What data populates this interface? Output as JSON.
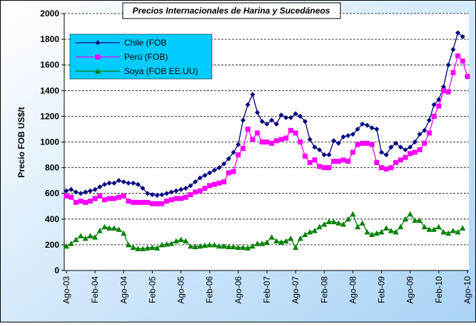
{
  "chart_data": {
    "type": "line",
    "title": "Precios Internacionales de Harina y Sucedáneos",
    "y_label": "Precio FOB US$/t",
    "categories": [
      "Ago-03",
      null,
      null,
      null,
      null,
      null,
      "Feb-04",
      null,
      null,
      null,
      null,
      null,
      "Ago-04",
      null,
      null,
      null,
      null,
      null,
      "Feb-05",
      null,
      null,
      null,
      null,
      null,
      "Ago-05",
      null,
      null,
      null,
      null,
      null,
      "Feb-06",
      null,
      null,
      null,
      null,
      null,
      "Ago-06",
      null,
      null,
      null,
      null,
      null,
      "Feb-07",
      null,
      null,
      null,
      null,
      null,
      "Ago-07",
      null,
      null,
      null,
      null,
      null,
      "Feb-08",
      null,
      null,
      null,
      null,
      null,
      "Ago-08",
      null,
      null,
      null,
      null,
      null,
      "Feb-09",
      null,
      null,
      null,
      null,
      null,
      "Ago-09",
      null,
      null,
      null,
      null,
      null,
      "Feb-10",
      null,
      null,
      null,
      null,
      null,
      "Ago-10"
    ],
    "series": [
      {
        "name": "Chile (FOB",
        "color": "#000080",
        "marker": "diamond",
        "values": [
          620,
          630,
          610,
          600,
          610,
          620,
          630,
          650,
          670,
          680,
          680,
          700,
          690,
          680,
          680,
          670,
          640,
          600,
          590,
          585,
          590,
          600,
          610,
          620,
          630,
          640,
          660,
          690,
          720,
          740,
          760,
          780,
          800,
          830,
          870,
          920,
          980,
          1170,
          1290,
          1370,
          1230,
          1160,
          1140,
          1170,
          1140,
          1210,
          1190,
          1190,
          1220,
          1200,
          1160,
          1020,
          960,
          940,
          900,
          900,
          1010,
          990,
          1040,
          1050,
          1060,
          1100,
          1140,
          1130,
          1110,
          1100,
          920,
          900,
          960,
          990,
          960,
          940,
          960,
          1000,
          1060,
          1090,
          1170,
          1290,
          1330,
          1430,
          1600,
          1720,
          1850,
          1820,
          null
        ]
      },
      {
        "name": "Perú (FOB)",
        "color": "#ff00ff",
        "marker": "square",
        "values": [
          580,
          570,
          530,
          540,
          530,
          540,
          560,
          580,
          550,
          560,
          560,
          570,
          580,
          540,
          530,
          530,
          530,
          530,
          520,
          520,
          520,
          540,
          550,
          560,
          560,
          570,
          590,
          610,
          620,
          640,
          660,
          670,
          680,
          690,
          760,
          770,
          900,
          950,
          1100,
          1020,
          1070,
          1000,
          1000,
          990,
          1010,
          1020,
          1030,
          1090,
          1070,
          1000,
          890,
          840,
          860,
          810,
          800,
          800,
          850,
          850,
          860,
          850,
          920,
          980,
          990,
          990,
          980,
          840,
          800,
          790,
          800,
          840,
          860,
          880,
          910,
          920,
          940,
          990,
          1070,
          1200,
          1280,
          1400,
          1390,
          1540,
          1670,
          1630,
          1510
        ]
      },
      {
        "name": "Soya (FOB EE.UU)",
        "color": "#008000",
        "marker": "triangle",
        "values": [
          190,
          210,
          240,
          270,
          250,
          270,
          260,
          310,
          340,
          330,
          330,
          320,
          290,
          200,
          180,
          170,
          170,
          175,
          180,
          175,
          200,
          205,
          210,
          230,
          240,
          230,
          190,
          185,
          190,
          195,
          200,
          200,
          190,
          190,
          185,
          185,
          180,
          180,
          175,
          190,
          210,
          210,
          220,
          260,
          230,
          220,
          230,
          250,
          180,
          250,
          280,
          300,
          310,
          340,
          360,
          380,
          380,
          370,
          360,
          400,
          440,
          340,
          370,
          300,
          280,
          290,
          300,
          330,
          310,
          300,
          340,
          400,
          440,
          390,
          390,
          340,
          320,
          320,
          340,
          300,
          290,
          310,
          300,
          330,
          null
        ]
      }
    ],
    "ylim": [
      0,
      2000
    ],
    "yticks": [
      0,
      200,
      400,
      600,
      800,
      1000,
      1200,
      1400,
      1600,
      1800,
      2000
    ],
    "grid": true,
    "legend": "top-left"
  }
}
